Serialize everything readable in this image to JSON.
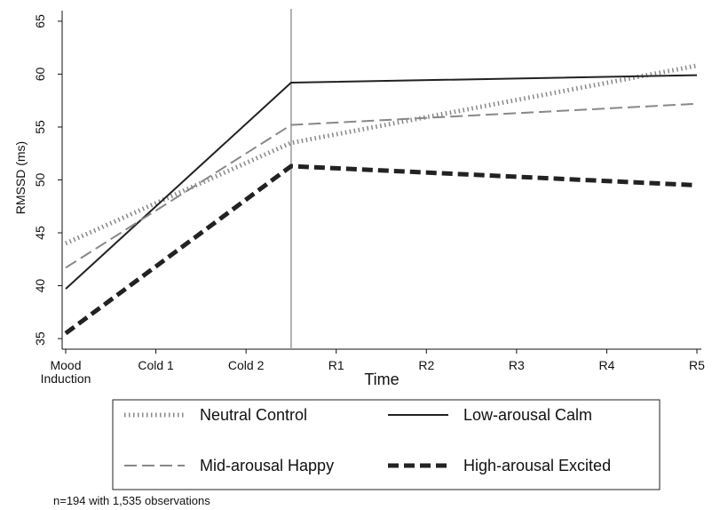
{
  "chart_data": {
    "type": "line",
    "categories": [
      "Mood Induction",
      "Cold 1",
      "Cold 2",
      "R1",
      "R2",
      "R3",
      "R4",
      "R5"
    ],
    "category_label_lines": [
      [
        "Mood",
        "Induction"
      ],
      [
        "Cold 1"
      ],
      [
        "Cold 2"
      ],
      [
        "R1"
      ],
      [
        "R2"
      ],
      [
        "R3"
      ],
      [
        "R4"
      ],
      [
        "R5"
      ]
    ],
    "series": [
      {
        "name": "Neutral Control",
        "style": "dotted",
        "color": "#888888",
        "x": [
          0,
          2.5,
          7
        ],
        "values": [
          44.0,
          53.5,
          60.8
        ]
      },
      {
        "name": "Low-arousal Calm",
        "style": "solid",
        "color": "#222222",
        "x": [
          0,
          2.5,
          7
        ],
        "values": [
          39.7,
          59.2,
          59.9
        ]
      },
      {
        "name": "Mid-arousal Happy",
        "style": "dashed",
        "color": "#888888",
        "x": [
          0,
          2.5,
          7
        ],
        "values": [
          41.7,
          55.2,
          57.2
        ]
      },
      {
        "name": "High-arousal Excited",
        "style": "bold-dashed",
        "color": "#222222",
        "x": [
          0,
          2.5,
          7
        ],
        "values": [
          35.5,
          51.3,
          49.5
        ]
      }
    ],
    "title": "",
    "xlabel": "Time",
    "ylabel": "RMSSD (ms)",
    "ylim": [
      34,
      66
    ],
    "yticks": [
      35,
      40,
      45,
      50,
      55,
      60,
      65
    ],
    "reference_line_x": 2.5,
    "grid": false,
    "legend_position": "bottom",
    "note": "n=194 with 1,535 observations"
  }
}
